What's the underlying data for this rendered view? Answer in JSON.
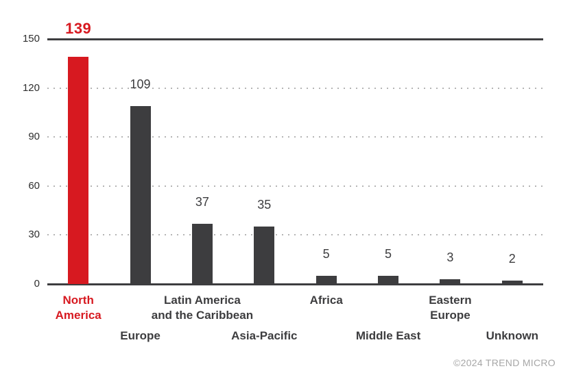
{
  "chart_data": {
    "type": "bar",
    "categories": [
      "North America",
      "Europe",
      "Latin America and the Caribbean",
      "Asia-Pacific",
      "Africa",
      "Middle East",
      "Eastern Europe",
      "Unknown"
    ],
    "values": [
      139,
      109,
      37,
      35,
      5,
      5,
      3,
      2
    ],
    "category_label_lines": [
      [
        "North",
        "America"
      ],
      [
        "Europe"
      ],
      [
        "Latin America",
        "and the Caribbean"
      ],
      [
        "Asia-Pacific"
      ],
      [
        "Africa"
      ],
      [
        "Middle East"
      ],
      [
        "Eastern",
        "Europe"
      ],
      [
        "Unknown"
      ]
    ],
    "title": "",
    "xlabel": "",
    "ylabel": "",
    "yticks": [
      0,
      30,
      60,
      90,
      120,
      150
    ],
    "ylim": [
      0,
      150
    ],
    "grid": "dotted horizontal gridlines at 30/60/90/120, solid lines at 0 and 150",
    "legend": "none",
    "highlight_index": 0,
    "highlight_color": "#d71920",
    "bar_color": "#3d3d3f",
    "gridline_dotted_color": "#b4b4b4",
    "axis_line_color": "#3d3d3f",
    "tick_label_color": "#2e2e2e",
    "value_label_color": "#3d3d3f"
  },
  "footer": {
    "copyright": "©2024 TREND MICRO"
  }
}
